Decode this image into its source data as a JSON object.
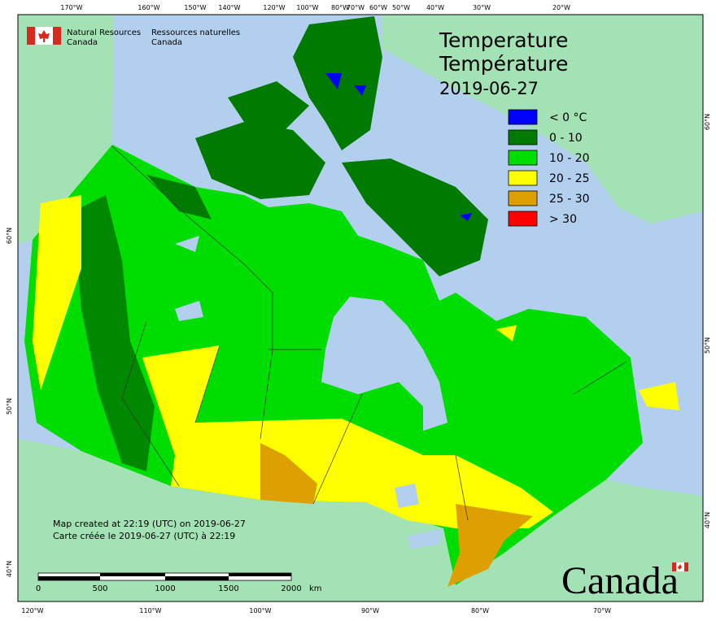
{
  "header": {
    "agency_en": [
      "Natural Resources",
      "Canada"
    ],
    "agency_fr": [
      "Ressources naturelles",
      "Canada"
    ]
  },
  "title": {
    "line1": "Temperature",
    "line2": "Température",
    "date": "2019-06-27"
  },
  "legend": [
    {
      "label": "< 0 °C",
      "color": "#0000ff"
    },
    {
      "label": "0 - 10",
      "color": "#007a00"
    },
    {
      "label": "10 - 20",
      "color": "#00dd00"
    },
    {
      "label": "20 - 25",
      "color": "#ffff00"
    },
    {
      "label": "25 - 30",
      "color": "#dea000"
    },
    {
      "label": "> 30",
      "color": "#ff0000"
    }
  ],
  "footer": {
    "created_en": "Map created at 22:19 (UTC) on 2019-06-27",
    "created_fr": "Carte créée le 2019-06-27 (UTC) à 22:19"
  },
  "scale_bar": {
    "labels": [
      "0",
      "500",
      "1000",
      "1500",
      "2000"
    ],
    "unit": "km"
  },
  "graticule": {
    "top": [
      "170°W",
      "160°W",
      "150°W",
      "140°W",
      "120°W",
      "100°W",
      "80°W",
      "70°W",
      "60°W",
      "50°W",
      "40°W",
      "30°W",
      "20°W"
    ],
    "bottom": [
      "120°W",
      "110°W",
      "100°W",
      "90°W",
      "80°W",
      "70°W"
    ],
    "left": [
      "60°N",
      "50°N",
      "40°N"
    ],
    "right": [
      "60°N",
      "50°N",
      "40°N"
    ]
  },
  "wordmark": "Canada"
}
